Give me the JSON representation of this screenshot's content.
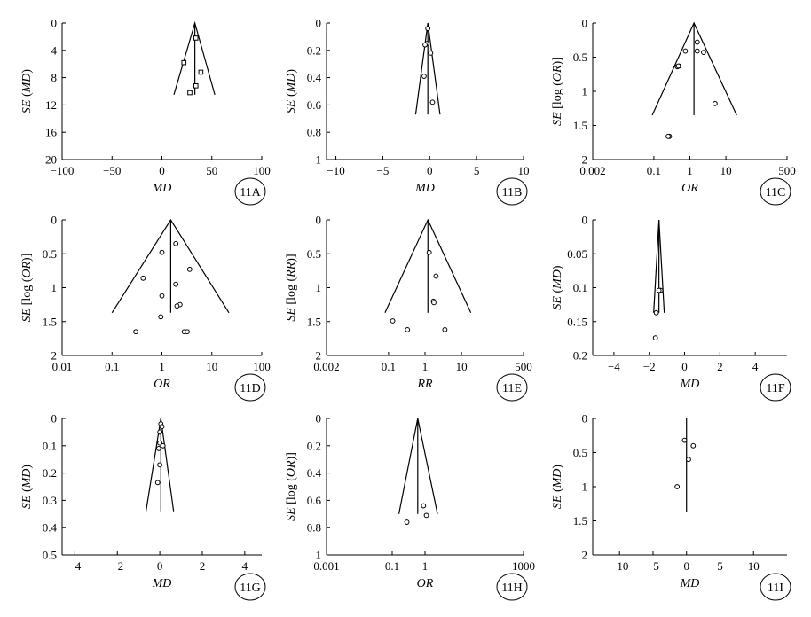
{
  "chart_data": [
    {
      "id": "11A",
      "type": "scatter",
      "subtype": "funnel",
      "xlabel": "MD",
      "ylabel": "SE (MD)",
      "xscale": "linear",
      "xlim": [
        -100,
        100
      ],
      "xticks": [
        -100,
        -50,
        0,
        50,
        100
      ],
      "ylim": [
        0,
        20
      ],
      "yticks": [
        0,
        4,
        8,
        12,
        16,
        20
      ],
      "yinverted": true,
      "funnel": {
        "center": 33,
        "apex_se": 0,
        "base_se": 10.5,
        "left_x": 12,
        "right_x": 53
      },
      "marker": "square",
      "points": [
        {
          "x": 34,
          "y": 2.2
        },
        {
          "x": 22,
          "y": 5.8
        },
        {
          "x": 39,
          "y": 7.2
        },
        {
          "x": 34,
          "y": 9.2
        },
        {
          "x": 28,
          "y": 10.2
        }
      ]
    },
    {
      "id": "11B",
      "type": "scatter",
      "subtype": "funnel",
      "xlabel": "MD",
      "ylabel": "SE (MD)",
      "xscale": "linear",
      "xlim": [
        -11,
        10
      ],
      "xticks": [
        -10,
        -5,
        0,
        5,
        10
      ],
      "ylim": [
        0,
        1
      ],
      "yticks": [
        0,
        0.2,
        0.4,
        0.6,
        0.8,
        1
      ],
      "yinverted": true,
      "funnel": {
        "center": -0.2,
        "apex_se": 0,
        "base_se": 0.67,
        "left_x": -1.5,
        "right_x": 1.1
      },
      "marker": "circle",
      "points": [
        {
          "x": -0.2,
          "y": 0.04
        },
        {
          "x": -0.3,
          "y": 0.15
        },
        {
          "x": -0.5,
          "y": 0.16
        },
        {
          "x": 0.1,
          "y": 0.22
        },
        {
          "x": -0.6,
          "y": 0.39
        },
        {
          "x": 0.3,
          "y": 0.58
        }
      ]
    },
    {
      "id": "11C",
      "type": "scatter",
      "subtype": "funnel",
      "xlabel": "OR",
      "ylabel": "SE [log (OR)]",
      "xscale": "log",
      "xlim": [
        0.002,
        500
      ],
      "xticks": [
        0.002,
        0.1,
        1,
        10,
        500
      ],
      "xticklabels": [
        "0.002",
        "0.1",
        "1",
        "10",
        "500"
      ],
      "ylim": [
        0,
        2
      ],
      "yticks": [
        0,
        0.5,
        1,
        1.5,
        2
      ],
      "yinverted": true,
      "funnel": {
        "center": 1.3,
        "apex_se": 0,
        "base_se": 1.35,
        "left_x": 0.09,
        "right_x": 20
      },
      "marker": "circle",
      "points": [
        {
          "x": 1.6,
          "y": 0.28
        },
        {
          "x": 0.75,
          "y": 0.41
        },
        {
          "x": 1.6,
          "y": 0.41
        },
        {
          "x": 2.4,
          "y": 0.43
        },
        {
          "x": 0.5,
          "y": 0.63
        },
        {
          "x": 0.45,
          "y": 0.64
        },
        {
          "x": 0.48,
          "y": 0.63
        },
        {
          "x": 5.0,
          "y": 1.18
        },
        {
          "x": 0.27,
          "y": 1.66
        },
        {
          "x": 0.25,
          "y": 1.66
        }
      ]
    },
    {
      "id": "11D",
      "type": "scatter",
      "subtype": "funnel",
      "xlabel": "OR",
      "ylabel": "SE [log (OR)]",
      "xscale": "log",
      "xlim": [
        0.01,
        100
      ],
      "xticks": [
        0.01,
        0.1,
        1,
        10,
        100
      ],
      "xticklabels": [
        "0.01",
        "0.1",
        "1",
        "10",
        "100"
      ],
      "ylim": [
        0,
        2
      ],
      "yticks": [
        0,
        0.5,
        1,
        1.5,
        2
      ],
      "yinverted": true,
      "funnel": {
        "center": 1.5,
        "apex_se": 0,
        "base_se": 1.37,
        "left_x": 0.1,
        "right_x": 22
      },
      "marker": "circle",
      "points": [
        {
          "x": 1.9,
          "y": 0.35
        },
        {
          "x": 1.0,
          "y": 0.48
        },
        {
          "x": 3.6,
          "y": 0.73
        },
        {
          "x": 0.42,
          "y": 0.86
        },
        {
          "x": 1.9,
          "y": 0.95
        },
        {
          "x": 1.0,
          "y": 1.12
        },
        {
          "x": 2.3,
          "y": 1.25
        },
        {
          "x": 2.0,
          "y": 1.27
        },
        {
          "x": 0.95,
          "y": 1.43
        },
        {
          "x": 0.3,
          "y": 1.65
        },
        {
          "x": 2.8,
          "y": 1.65
        },
        {
          "x": 3.2,
          "y": 1.65
        }
      ]
    },
    {
      "id": "11E",
      "type": "scatter",
      "subtype": "funnel",
      "xlabel": "RR",
      "ylabel": "SE [log (RR)]",
      "xscale": "log",
      "xlim": [
        0.002,
        500
      ],
      "xticks": [
        0.002,
        0.1,
        1,
        10,
        500
      ],
      "xticklabels": [
        "0.002",
        "0.1",
        "1",
        "10",
        "500"
      ],
      "ylim": [
        0,
        2
      ],
      "yticks": [
        0,
        0.5,
        1,
        1.5,
        2
      ],
      "yinverted": true,
      "funnel": {
        "center": 1.2,
        "apex_se": 0,
        "base_se": 1.37,
        "left_x": 0.08,
        "right_x": 18
      },
      "marker": "circle",
      "points": [
        {
          "x": 1.3,
          "y": 0.48
        },
        {
          "x": 2.0,
          "y": 0.83
        },
        {
          "x": 1.7,
          "y": 1.2
        },
        {
          "x": 1.75,
          "y": 1.22
        },
        {
          "x": 0.13,
          "y": 1.49
        },
        {
          "x": 0.33,
          "y": 1.62
        },
        {
          "x": 3.5,
          "y": 1.62
        }
      ]
    },
    {
      "id": "11F",
      "type": "scatter",
      "subtype": "funnel",
      "xlabel": "MD",
      "ylabel": "SE (MD)",
      "xscale": "linear",
      "xlim": [
        -5.2,
        5.8
      ],
      "xticks": [
        -4,
        -2,
        0,
        2,
        4
      ],
      "ylim": [
        0,
        0.2
      ],
      "yticks": [
        0,
        0.05,
        0.1,
        0.15,
        0.2
      ],
      "yinverted": true,
      "funnel": {
        "center": -1.45,
        "apex_se": 0,
        "base_se": 0.137,
        "left_x": -1.75,
        "right_x": -1.15
      },
      "marker": "circle",
      "points": [
        {
          "x": -1.35,
          "y": 0.104
        },
        {
          "x": -1.45,
          "y": 0.104
        },
        {
          "x": -1.6,
          "y": 0.137
        },
        {
          "x": -1.65,
          "y": 0.174
        }
      ]
    },
    {
      "id": "11G",
      "type": "scatter",
      "subtype": "funnel",
      "xlabel": "MD",
      "ylabel": "SE (MD)",
      "xscale": "linear",
      "xlim": [
        -4.6,
        4.8
      ],
      "xticks": [
        -4,
        -2,
        0,
        2,
        4
      ],
      "ylim": [
        0,
        0.5
      ],
      "yticks": [
        0,
        0.1,
        0.2,
        0.3,
        0.4,
        0.5
      ],
      "yinverted": true,
      "funnel": {
        "center": 0.05,
        "apex_se": 0,
        "base_se": 0.34,
        "left_x": -0.65,
        "right_x": 0.65
      },
      "marker": "circle",
      "points": [
        {
          "x": 0.05,
          "y": 0.02
        },
        {
          "x": 0.1,
          "y": 0.03
        },
        {
          "x": 0.0,
          "y": 0.05
        },
        {
          "x": 0.0,
          "y": 0.09
        },
        {
          "x": 0.15,
          "y": 0.1
        },
        {
          "x": -0.05,
          "y": 0.11
        },
        {
          "x": 0.0,
          "y": 0.17
        },
        {
          "x": -0.1,
          "y": 0.235
        }
      ]
    },
    {
      "id": "11H",
      "type": "scatter",
      "subtype": "funnel",
      "xlabel": "OR",
      "ylabel": "SE [log (OR)]",
      "xscale": "log",
      "xlim": [
        0.001,
        1000
      ],
      "xticks": [
        0.001,
        0.1,
        1,
        1000
      ],
      "xticklabels": [
        "0.001",
        "0.1",
        "1",
        "1000"
      ],
      "ylim": [
        0,
        1
      ],
      "yticks": [
        0,
        0.2,
        0.4,
        0.6,
        0.8,
        1
      ],
      "yinverted": true,
      "funnel": {
        "center": 0.6,
        "apex_se": 0,
        "base_se": 0.7,
        "left_x": 0.16,
        "right_x": 2.4
      },
      "marker": "circle",
      "points": [
        {
          "x": 0.9,
          "y": 0.64
        },
        {
          "x": 1.1,
          "y": 0.71
        },
        {
          "x": 0.28,
          "y": 0.76
        }
      ]
    },
    {
      "id": "11I",
      "type": "scatter",
      "subtype": "funnel",
      "xlabel": "MD",
      "ylabel": "SE (MD)",
      "xscale": "linear",
      "xlim": [
        -14,
        15
      ],
      "xticks": [
        -10,
        -5,
        0,
        5,
        10
      ],
      "ylim": [
        0,
        2
      ],
      "yticks": [
        0,
        0.5,
        1,
        1.5,
        2
      ],
      "yinverted": true,
      "funnel": {
        "center": 0,
        "apex_se": 0,
        "base_se": 1.37,
        "left_x": 0,
        "right_x": 0
      },
      "marker": "circle",
      "points": [
        {
          "x": -0.3,
          "y": 0.32
        },
        {
          "x": 1.0,
          "y": 0.4
        },
        {
          "x": 0.3,
          "y": 0.6
        },
        {
          "x": -1.4,
          "y": 1.0
        }
      ]
    }
  ]
}
